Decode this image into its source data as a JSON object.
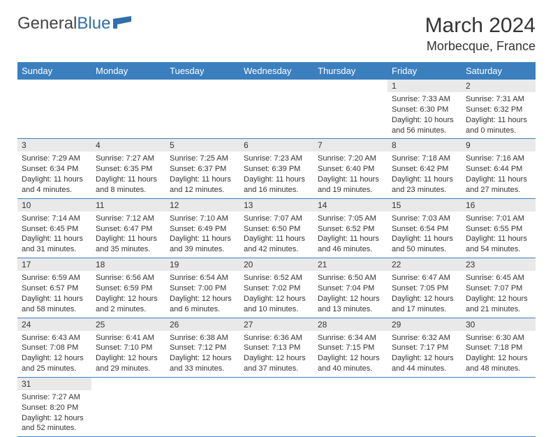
{
  "logo": {
    "part1": "General",
    "part2": "Blue"
  },
  "title": "March 2024",
  "location": "Morbecque, France",
  "colors": {
    "header_bg": "#3b7fbf",
    "header_text": "#ffffff",
    "daynum_bg": "#e9e9e9",
    "border": "#3b7fbf",
    "text": "#333333",
    "logo_blue": "#2f6faa"
  },
  "weekdays": [
    "Sunday",
    "Monday",
    "Tuesday",
    "Wednesday",
    "Thursday",
    "Friday",
    "Saturday"
  ],
  "weeks": [
    [
      {
        "empty": true
      },
      {
        "empty": true
      },
      {
        "empty": true
      },
      {
        "empty": true
      },
      {
        "empty": true
      },
      {
        "day": "1",
        "sunrise": "Sunrise: 7:33 AM",
        "sunset": "Sunset: 6:30 PM",
        "daylight": "Daylight: 10 hours and 56 minutes."
      },
      {
        "day": "2",
        "sunrise": "Sunrise: 7:31 AM",
        "sunset": "Sunset: 6:32 PM",
        "daylight": "Daylight: 11 hours and 0 minutes."
      }
    ],
    [
      {
        "day": "3",
        "sunrise": "Sunrise: 7:29 AM",
        "sunset": "Sunset: 6:34 PM",
        "daylight": "Daylight: 11 hours and 4 minutes."
      },
      {
        "day": "4",
        "sunrise": "Sunrise: 7:27 AM",
        "sunset": "Sunset: 6:35 PM",
        "daylight": "Daylight: 11 hours and 8 minutes."
      },
      {
        "day": "5",
        "sunrise": "Sunrise: 7:25 AM",
        "sunset": "Sunset: 6:37 PM",
        "daylight": "Daylight: 11 hours and 12 minutes."
      },
      {
        "day": "6",
        "sunrise": "Sunrise: 7:23 AM",
        "sunset": "Sunset: 6:39 PM",
        "daylight": "Daylight: 11 hours and 16 minutes."
      },
      {
        "day": "7",
        "sunrise": "Sunrise: 7:20 AM",
        "sunset": "Sunset: 6:40 PM",
        "daylight": "Daylight: 11 hours and 19 minutes."
      },
      {
        "day": "8",
        "sunrise": "Sunrise: 7:18 AM",
        "sunset": "Sunset: 6:42 PM",
        "daylight": "Daylight: 11 hours and 23 minutes."
      },
      {
        "day": "9",
        "sunrise": "Sunrise: 7:16 AM",
        "sunset": "Sunset: 6:44 PM",
        "daylight": "Daylight: 11 hours and 27 minutes."
      }
    ],
    [
      {
        "day": "10",
        "sunrise": "Sunrise: 7:14 AM",
        "sunset": "Sunset: 6:45 PM",
        "daylight": "Daylight: 11 hours and 31 minutes."
      },
      {
        "day": "11",
        "sunrise": "Sunrise: 7:12 AM",
        "sunset": "Sunset: 6:47 PM",
        "daylight": "Daylight: 11 hours and 35 minutes."
      },
      {
        "day": "12",
        "sunrise": "Sunrise: 7:10 AM",
        "sunset": "Sunset: 6:49 PM",
        "daylight": "Daylight: 11 hours and 39 minutes."
      },
      {
        "day": "13",
        "sunrise": "Sunrise: 7:07 AM",
        "sunset": "Sunset: 6:50 PM",
        "daylight": "Daylight: 11 hours and 42 minutes."
      },
      {
        "day": "14",
        "sunrise": "Sunrise: 7:05 AM",
        "sunset": "Sunset: 6:52 PM",
        "daylight": "Daylight: 11 hours and 46 minutes."
      },
      {
        "day": "15",
        "sunrise": "Sunrise: 7:03 AM",
        "sunset": "Sunset: 6:54 PM",
        "daylight": "Daylight: 11 hours and 50 minutes."
      },
      {
        "day": "16",
        "sunrise": "Sunrise: 7:01 AM",
        "sunset": "Sunset: 6:55 PM",
        "daylight": "Daylight: 11 hours and 54 minutes."
      }
    ],
    [
      {
        "day": "17",
        "sunrise": "Sunrise: 6:59 AM",
        "sunset": "Sunset: 6:57 PM",
        "daylight": "Daylight: 11 hours and 58 minutes."
      },
      {
        "day": "18",
        "sunrise": "Sunrise: 6:56 AM",
        "sunset": "Sunset: 6:59 PM",
        "daylight": "Daylight: 12 hours and 2 minutes."
      },
      {
        "day": "19",
        "sunrise": "Sunrise: 6:54 AM",
        "sunset": "Sunset: 7:00 PM",
        "daylight": "Daylight: 12 hours and 6 minutes."
      },
      {
        "day": "20",
        "sunrise": "Sunrise: 6:52 AM",
        "sunset": "Sunset: 7:02 PM",
        "daylight": "Daylight: 12 hours and 10 minutes."
      },
      {
        "day": "21",
        "sunrise": "Sunrise: 6:50 AM",
        "sunset": "Sunset: 7:04 PM",
        "daylight": "Daylight: 12 hours and 13 minutes."
      },
      {
        "day": "22",
        "sunrise": "Sunrise: 6:47 AM",
        "sunset": "Sunset: 7:05 PM",
        "daylight": "Daylight: 12 hours and 17 minutes."
      },
      {
        "day": "23",
        "sunrise": "Sunrise: 6:45 AM",
        "sunset": "Sunset: 7:07 PM",
        "daylight": "Daylight: 12 hours and 21 minutes."
      }
    ],
    [
      {
        "day": "24",
        "sunrise": "Sunrise: 6:43 AM",
        "sunset": "Sunset: 7:08 PM",
        "daylight": "Daylight: 12 hours and 25 minutes."
      },
      {
        "day": "25",
        "sunrise": "Sunrise: 6:41 AM",
        "sunset": "Sunset: 7:10 PM",
        "daylight": "Daylight: 12 hours and 29 minutes."
      },
      {
        "day": "26",
        "sunrise": "Sunrise: 6:38 AM",
        "sunset": "Sunset: 7:12 PM",
        "daylight": "Daylight: 12 hours and 33 minutes."
      },
      {
        "day": "27",
        "sunrise": "Sunrise: 6:36 AM",
        "sunset": "Sunset: 7:13 PM",
        "daylight": "Daylight: 12 hours and 37 minutes."
      },
      {
        "day": "28",
        "sunrise": "Sunrise: 6:34 AM",
        "sunset": "Sunset: 7:15 PM",
        "daylight": "Daylight: 12 hours and 40 minutes."
      },
      {
        "day": "29",
        "sunrise": "Sunrise: 6:32 AM",
        "sunset": "Sunset: 7:17 PM",
        "daylight": "Daylight: 12 hours and 44 minutes."
      },
      {
        "day": "30",
        "sunrise": "Sunrise: 6:30 AM",
        "sunset": "Sunset: 7:18 PM",
        "daylight": "Daylight: 12 hours and 48 minutes."
      }
    ],
    [
      {
        "day": "31",
        "sunrise": "Sunrise: 7:27 AM",
        "sunset": "Sunset: 8:20 PM",
        "daylight": "Daylight: 12 hours and 52 minutes."
      },
      {
        "empty": true
      },
      {
        "empty": true
      },
      {
        "empty": true
      },
      {
        "empty": true
      },
      {
        "empty": true
      },
      {
        "empty": true
      }
    ]
  ]
}
